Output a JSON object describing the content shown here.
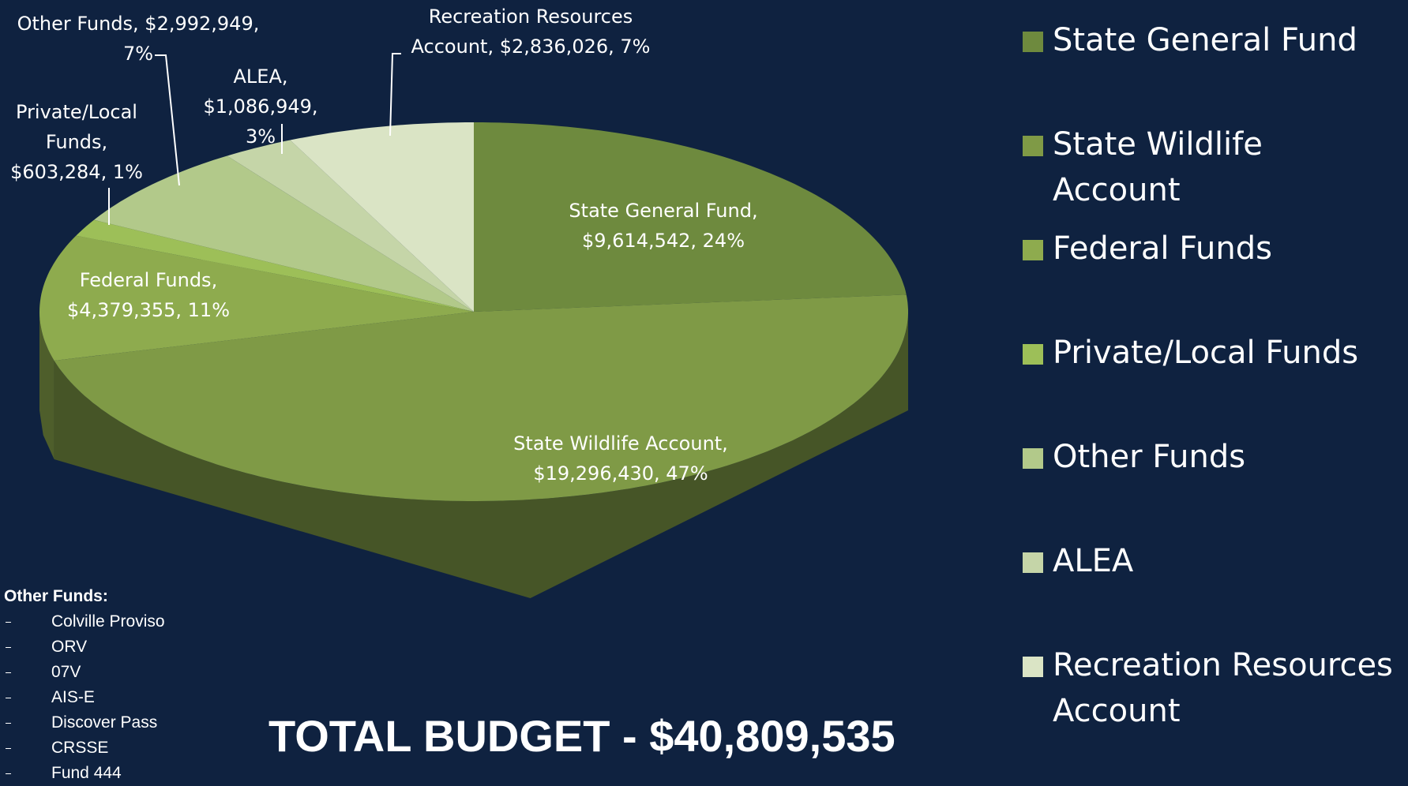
{
  "chart_data": {
    "type": "pie3d",
    "categories": [
      "State General Fund",
      "State Wildlife Account",
      "Federal Funds",
      "Private/Local Funds",
      "Other Funds",
      "ALEA",
      "Recreation Resources Account"
    ],
    "values": [
      9614542,
      19296430,
      4379355,
      603284,
      2992949,
      1086949,
      2836026
    ],
    "value_labels": [
      [
        "State General Fund,",
        "$9,614,542, 24%"
      ],
      [
        "State Wildlife Account,",
        "$19,296,430, 47%"
      ],
      [
        "Federal Funds,",
        "$4,379,355, 11%"
      ],
      [
        "Private/Local",
        "Funds,",
        "$603,284, 1%"
      ],
      [
        "Other Funds, $2,992,949,",
        "7%"
      ],
      [
        "ALEA,",
        "$1,086,949,",
        "3%"
      ],
      [
        "Recreation Resources",
        "Account, $2,836,026, 7%"
      ]
    ],
    "colors": [
      "#6e8a3e",
      "#7f9a46",
      "#8eab4e",
      "#9dbf58",
      "#b2c98a",
      "#c5d5a8",
      "#dae4c5"
    ],
    "legend": "right",
    "total_text": "TOTAL BUDGET - $40,809,535",
    "note": {
      "title": "Other Funds:",
      "items": [
        "Colville Proviso",
        "ORV",
        "07V",
        "AIS-E",
        "Discover Pass",
        "CRSSE",
        "Fund 444"
      ]
    }
  }
}
